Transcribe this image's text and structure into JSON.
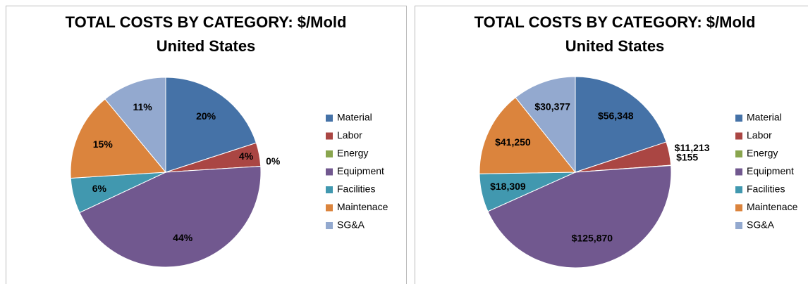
{
  "chart_data": [
    {
      "type": "pie",
      "title": "TOTAL COSTS BY CATEGORY: $/Mold",
      "subtitle": "United States",
      "categories": [
        "Material",
        "Labor",
        "Energy",
        "Equipment",
        "Facilities",
        "Maintenace",
        "SG&A"
      ],
      "values": [
        20,
        4,
        0,
        44,
        6,
        15,
        11
      ],
      "value_labels": [
        "20%",
        "4%",
        "0%",
        "44%",
        "6%",
        "15%",
        "11%"
      ],
      "colors": [
        "#4572a7",
        "#aa4643",
        "#89a54e",
        "#71588f",
        "#4198af",
        "#db843d",
        "#93a9cf"
      ],
      "legend": "right"
    },
    {
      "type": "pie",
      "title": "TOTAL COSTS BY CATEGORY: $/Mold",
      "subtitle": "United States",
      "categories": [
        "Material",
        "Labor",
        "Energy",
        "Equipment",
        "Facilities",
        "Maintenace",
        "SG&A"
      ],
      "values": [
        56348,
        11213,
        155,
        125870,
        18309,
        41250,
        30377
      ],
      "value_labels": [
        "$56,348",
        "$11,213",
        "$155",
        "$125,870",
        "$18,309",
        "$41,250",
        "$30,377"
      ],
      "colors": [
        "#4572a7",
        "#aa4643",
        "#89a54e",
        "#71588f",
        "#4198af",
        "#db843d",
        "#93a9cf"
      ],
      "legend": "right"
    }
  ]
}
